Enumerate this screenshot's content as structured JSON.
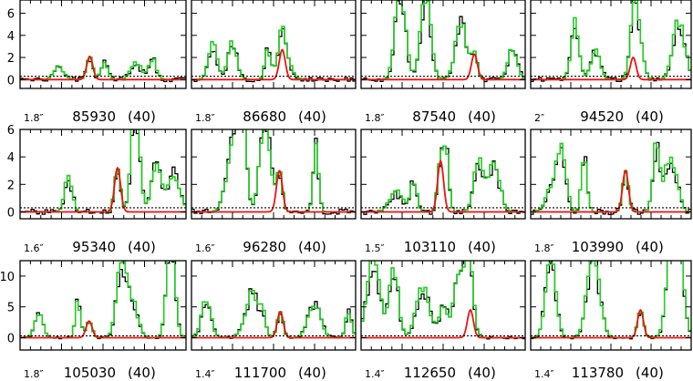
{
  "chart_data": {
    "type": "line",
    "layout": "3 rows x 4 columns grid of spectra panels",
    "axes_style": "framed boxes, ticks on all sides, no axis titles",
    "grid": false,
    "baseline_style": "dotted horizontal line near 0.3",
    "colors": {
      "observed": "#000000",
      "model_total": "#22cc22",
      "model_line": "#ee1111"
    },
    "rows": [
      {
        "ylim": [
          -0.8,
          7.2
        ],
        "yticks": [
          0,
          2,
          4,
          6
        ],
        "yticklabels": [
          "0",
          "2",
          "4",
          "6"
        ]
      },
      {
        "ylim": [
          -0.5,
          6.0
        ],
        "yticks": [
          0,
          2,
          4,
          6
        ],
        "yticklabels": [
          "0",
          "2",
          "4",
          "6"
        ]
      },
      {
        "ylim": [
          -2.0,
          12.5
        ],
        "yticks": [
          0,
          5,
          10
        ],
        "yticklabels": [
          "0",
          "5",
          "10"
        ]
      }
    ],
    "panels": [
      {
        "beam": "1.8″",
        "freq": "85930",
        "count": "(40)",
        "peak": 2.1,
        "ref": 2
      },
      {
        "beam": "1.8″",
        "freq": "86680",
        "count": "(40)",
        "peak": 2.7,
        "ref": 2.8
      },
      {
        "beam": "1.8″",
        "freq": "87540",
        "count": "(40)",
        "peak": 2.3,
        "ref": 5.8
      },
      {
        "beam": "2″",
        "freq": "94520",
        "count": "(40)",
        "peak": 2.0,
        "ref": 4.5
      },
      {
        "beam": "1.6″",
        "freq": "95340",
        "count": "(40)",
        "peak": 3.2,
        "ref": 4.2
      },
      {
        "beam": "1.6″",
        "freq": "96280",
        "count": "(40)",
        "peak": 3.0,
        "ref": 5.0
      },
      {
        "beam": "1.5″",
        "freq": "103110",
        "count": "(40)",
        "peak": 3.7,
        "ref": 3.4
      },
      {
        "beam": "1.8″",
        "freq": "103990",
        "count": "(40)",
        "peak": 3.0,
        "ref": 3.3
      },
      {
        "beam": "1.8″",
        "freq": "105030",
        "count": "(40)",
        "peak": 2.7,
        "ref": 8.5
      },
      {
        "beam": "1.4″",
        "freq": "111700",
        "count": "(40)",
        "peak": 4.2,
        "ref": 4.0
      },
      {
        "beam": "1.4″",
        "freq": "112650",
        "count": "(40)",
        "peak": 4.5,
        "ref": 11.5
      },
      {
        "beam": "1.4″",
        "freq": "113780",
        "count": "(40)",
        "peak": 4.5,
        "ref": 11.0
      }
    ]
  }
}
